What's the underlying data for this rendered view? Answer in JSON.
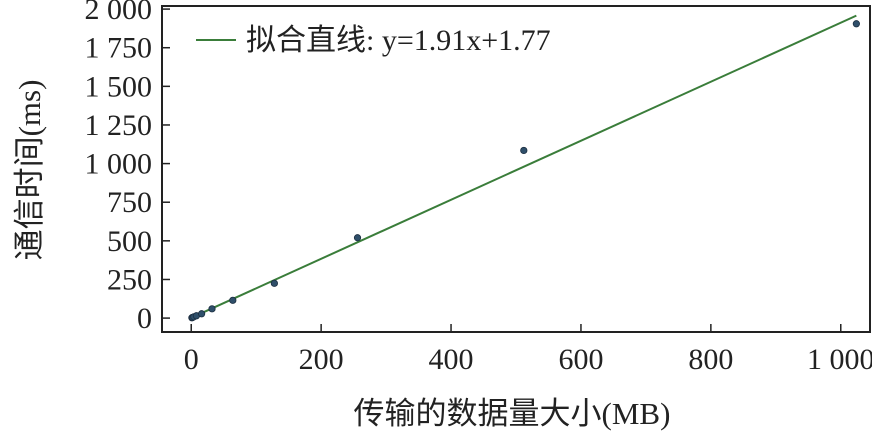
{
  "chart_data": {
    "type": "scatter",
    "title": "",
    "xlabel": "传输的数据量大小(MB)",
    "ylabel": "通信时间(ms)",
    "xlim": [
      -45,
      1045
    ],
    "ylim": [
      -90,
      2020
    ],
    "xticks": [
      0,
      200,
      400,
      600,
      800,
      1000
    ],
    "xtick_labels": [
      "0",
      "200",
      "400",
      "600",
      "800",
      "1 000"
    ],
    "yticks": [
      0,
      250,
      500,
      750,
      1000,
      1250,
      1500,
      1750,
      2000
    ],
    "ytick_labels": [
      "0",
      "250",
      "500",
      "750",
      "1 000",
      "1 250",
      "1 500",
      "1 750",
      "2 000"
    ],
    "grid": false,
    "legend_position": "top-left",
    "points": {
      "x": [
        1,
        2,
        4,
        8,
        16,
        32,
        64,
        128,
        256,
        512,
        1024
      ],
      "y": [
        2,
        4,
        8,
        15,
        28,
        60,
        115,
        225,
        520,
        1085,
        1905
      ],
      "color": "#2f4f6a"
    },
    "fit_line": {
      "name": "拟合直线: y=1.91x+1.77",
      "slope": 1.91,
      "intercept": 1.77,
      "x_range": [
        0,
        1024
      ],
      "color": "#3a7d3a"
    }
  }
}
